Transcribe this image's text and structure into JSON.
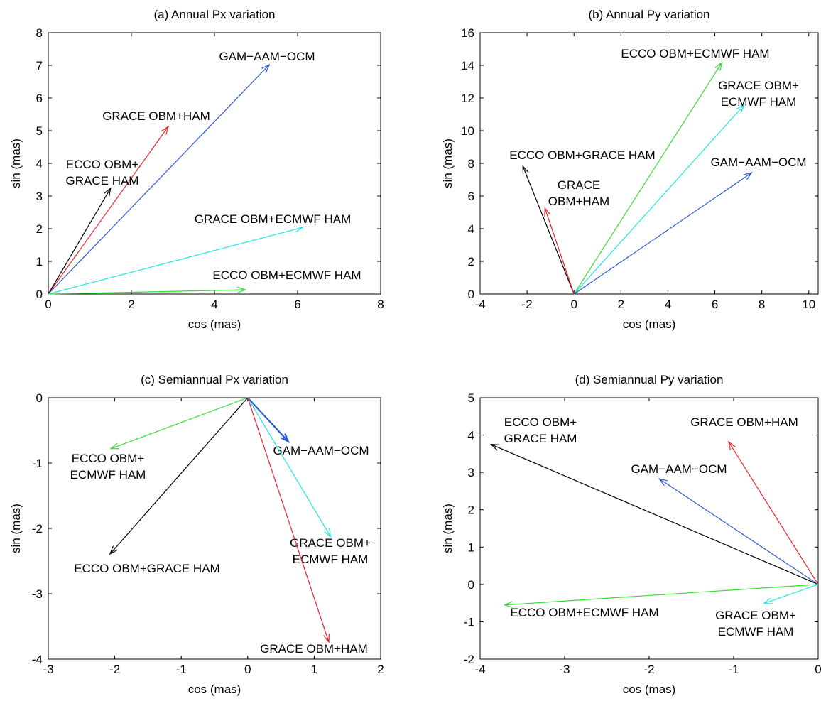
{
  "chart_data": [
    {
      "type": "vector",
      "title": "(a) Annual Px variation",
      "xlabel": "cos (mas)",
      "ylabel": "sin (mas)",
      "xlim": [
        0,
        8
      ],
      "ylim": [
        0,
        8
      ],
      "xticks": [
        0,
        2,
        4,
        6,
        8
      ],
      "yticks": [
        0,
        1,
        2,
        3,
        4,
        5,
        6,
        7,
        8
      ],
      "series": [
        {
          "name": [
            "GAM−AAM−OCM"
          ],
          "color": "#2b59d6",
          "x": 5.32,
          "y": 7.02
        },
        {
          "name": [
            "GRACE OBM+HAM"
          ],
          "color": "#e8242b",
          "x": 2.89,
          "y": 5.13
        },
        {
          "name": [
            "ECCO OBM+",
            "GRACE HAM"
          ],
          "color": "#000000",
          "x": 1.5,
          "y": 3.24
        },
        {
          "name": [
            "GRACE OBM+ECMWF HAM"
          ],
          "color": "#22e5e5",
          "x": 6.12,
          "y": 2.04
        },
        {
          "name": [
            "ECCO OBM+ECMWF HAM"
          ],
          "color": "#33dd33",
          "x": 4.74,
          "y": 0.13
        }
      ]
    },
    {
      "type": "vector",
      "title": "(b) Annual Py variation",
      "xlabel": "cos (mas)",
      "ylabel": "sin (mas)",
      "xlim": [
        -4,
        10.4
      ],
      "ylim": [
        0,
        16
      ],
      "xticks": [
        -4,
        -2,
        0,
        2,
        4,
        6,
        8,
        10
      ],
      "yticks": [
        0,
        2,
        4,
        6,
        8,
        10,
        12,
        14,
        16
      ],
      "series": [
        {
          "name": [
            "ECCO OBM+ECMWF HAM"
          ],
          "color": "#33dd33",
          "x": 6.3,
          "y": 14.17
        },
        {
          "name": [
            "GRACE OBM+",
            "ECMWF HAM"
          ],
          "color": "#22e5e5",
          "x": 7.24,
          "y": 11.57
        },
        {
          "name": [
            "GAM−AAM−OCM"
          ],
          "color": "#2b59d6",
          "x": 7.57,
          "y": 7.43
        },
        {
          "name": [
            "ECCO OBM+GRACE HAM"
          ],
          "color": "#000000",
          "x": -2.18,
          "y": 7.83
        },
        {
          "name": [
            "GRACE",
            "OBM+HAM"
          ],
          "color": "#e8242b",
          "x": -1.24,
          "y": 5.26
        }
      ]
    },
    {
      "type": "vector",
      "title": "(c) Semiannual Px variation",
      "xlabel": "cos (mas)",
      "ylabel": "sin (mas)",
      "xlim": [
        -3,
        2
      ],
      "ylim": [
        -4,
        0
      ],
      "xticks": [
        -3,
        -2,
        -1,
        0,
        1,
        2
      ],
      "yticks": [
        -4,
        -3,
        -2,
        -1,
        0
      ],
      "series": [
        {
          "name": [
            "GAM−AAM−OCM"
          ],
          "color": "#2b59d6",
          "x": 0.61,
          "y": -0.67
        },
        {
          "name": [
            "ECCO OBM+",
            "ECMWF HAM"
          ],
          "color": "#33dd33",
          "x": -2.06,
          "y": -0.78
        },
        {
          "name": [
            "ECCO OBM+GRACE HAM"
          ],
          "color": "#000000",
          "x": -2.07,
          "y": -2.39
        },
        {
          "name": [
            "GRACE OBM+",
            "ECMWF HAM"
          ],
          "color": "#22e5e5",
          "x": 1.25,
          "y": -2.13
        },
        {
          "name": [
            "GRACE OBM+HAM"
          ],
          "color": "#e8242b",
          "x": 1.22,
          "y": -3.74
        }
      ]
    },
    {
      "type": "vector",
      "title": "(d) Semiannual Py variation",
      "xlabel": "cos (mas)",
      "ylabel": "sin (mas)",
      "xlim": [
        -4,
        0
      ],
      "ylim": [
        -2,
        5
      ],
      "xticks": [
        -4,
        -3,
        -2,
        -1,
        0
      ],
      "yticks": [
        -2,
        -1,
        0,
        1,
        2,
        3,
        4,
        5
      ],
      "series": [
        {
          "name": [
            "ECCO OBM+",
            "GRACE HAM"
          ],
          "color": "#000000",
          "x": -3.87,
          "y": 3.75
        },
        {
          "name": [
            "GRACE OBM+HAM"
          ],
          "color": "#e8242b",
          "x": -1.06,
          "y": 3.82
        },
        {
          "name": [
            "GAM−AAM−OCM"
          ],
          "color": "#2b59d6",
          "x": -1.88,
          "y": 2.83
        },
        {
          "name": [
            "ECCO OBM+ECMWF HAM"
          ],
          "color": "#33dd33",
          "x": -3.71,
          "y": -0.55
        },
        {
          "name": [
            "GRACE OBM+",
            "ECMWF HAM"
          ],
          "color": "#22e5e5",
          "x": -0.64,
          "y": -0.51
        }
      ]
    }
  ]
}
